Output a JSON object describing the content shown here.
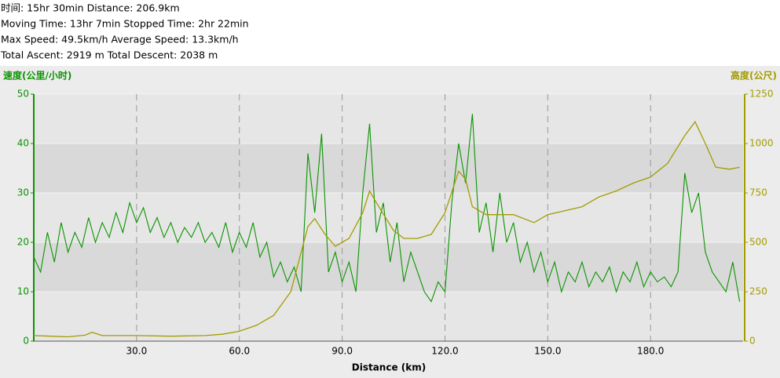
{
  "header": [
    "时间: 15hr 30min  Distance: 206.9km",
    "Moving Time: 13hr 7min  Stopped Time: 2hr 22min",
    "Max Speed: 49.5km/h  Average Speed: 13.3km/h",
    "Total Ascent: 2919 m  Total Descent: 2038 m"
  ],
  "chart_data": {
    "type": "line",
    "x_label": "Distance (km)",
    "y_label": "速度(公里/小时)",
    "y2_label": "高度(公尺)",
    "xlim": [
      0,
      207
    ],
    "xticks": [
      {
        "value": 30,
        "label": "30.0"
      },
      {
        "value": 60,
        "label": "60.0"
      },
      {
        "value": 90,
        "label": "90.0"
      },
      {
        "value": 120,
        "label": "120.0"
      },
      {
        "value": 150,
        "label": "150.0"
      },
      {
        "value": 180,
        "label": "180.0"
      }
    ],
    "ylim": [
      0,
      50
    ],
    "yticks": [
      0,
      10,
      20,
      30,
      40,
      50
    ],
    "y2lim": [
      0,
      1250
    ],
    "y2ticks": [
      0,
      250,
      500,
      750,
      1000,
      1250
    ],
    "grid": true,
    "series": [
      {
        "color": "#0a9400",
        "x": [
          0,
          2,
          4,
          6,
          8,
          10,
          12,
          14,
          16,
          18,
          20,
          22,
          24,
          26,
          28,
          30,
          32,
          34,
          36,
          38,
          40,
          42,
          44,
          46,
          48,
          50,
          52,
          54,
          56,
          58,
          60,
          62,
          64,
          66,
          68,
          70,
          72,
          74,
          76,
          78,
          80,
          82,
          84,
          86,
          88,
          90,
          92,
          94,
          96,
          98,
          100,
          102,
          104,
          106,
          108,
          110,
          112,
          114,
          116,
          118,
          120,
          122,
          124,
          126,
          128,
          130,
          132,
          134,
          136,
          138,
          140,
          142,
          144,
          146,
          148,
          150,
          152,
          154,
          156,
          158,
          160,
          162,
          164,
          166,
          168,
          170,
          172,
          174,
          176,
          178,
          180,
          182,
          184,
          186,
          188,
          190,
          192,
          194,
          196,
          198,
          200,
          202,
          204,
          206
        ],
        "values": [
          17,
          14,
          22,
          16,
          24,
          18,
          22,
          19,
          25,
          20,
          24,
          21,
          26,
          22,
          28,
          24,
          27,
          22,
          25,
          21,
          24,
          20,
          23,
          21,
          24,
          20,
          22,
          19,
          24,
          18,
          22,
          19,
          24,
          17,
          20,
          13,
          16,
          12,
          15,
          10,
          38,
          26,
          42,
          14,
          18,
          12,
          16,
          10,
          30,
          44,
          22,
          28,
          16,
          24,
          12,
          18,
          14,
          10,
          8,
          12,
          10,
          28,
          40,
          32,
          46,
          22,
          28,
          18,
          30,
          20,
          24,
          16,
          20,
          14,
          18,
          12,
          16,
          10,
          14,
          12,
          16,
          11,
          14,
          12,
          15,
          10,
          14,
          12,
          16,
          11,
          14,
          12,
          13,
          11,
          14,
          34,
          26,
          30,
          18,
          14,
          12,
          10,
          16,
          8
        ]
      },
      {
        "color": "#a39c00",
        "axis": "y2",
        "x": [
          0,
          5,
          10,
          15,
          17,
          20,
          30,
          40,
          50,
          55,
          60,
          65,
          70,
          75,
          80,
          82,
          85,
          88,
          92,
          96,
          98,
          100,
          105,
          108,
          112,
          116,
          120,
          124,
          126,
          128,
          132,
          140,
          146,
          150,
          160,
          165,
          170,
          175,
          180,
          185,
          190,
          193,
          196,
          199,
          203,
          206
        ],
        "values": [
          28,
          25,
          22,
          30,
          45,
          28,
          28,
          25,
          28,
          35,
          50,
          80,
          130,
          250,
          580,
          620,
          540,
          480,
          520,
          650,
          760,
          700,
          560,
          520,
          520,
          540,
          650,
          860,
          820,
          680,
          640,
          640,
          600,
          640,
          680,
          730,
          760,
          800,
          830,
          900,
          1040,
          1110,
          1000,
          880,
          870,
          880
        ]
      }
    ]
  }
}
